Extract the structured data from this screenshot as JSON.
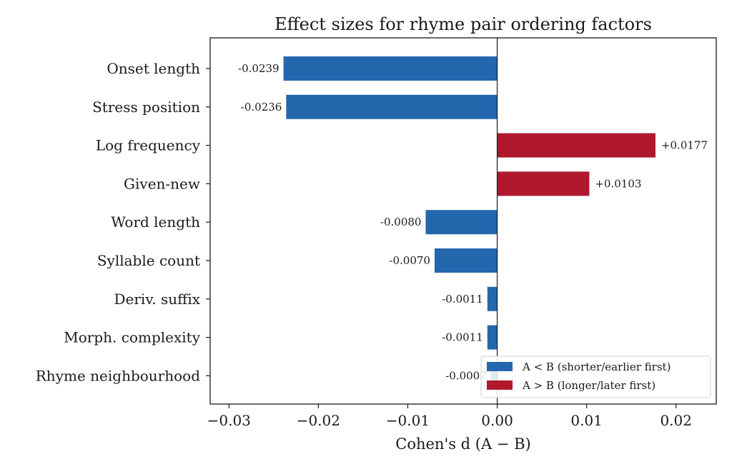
{
  "chart_data": {
    "type": "bar",
    "orientation": "horizontal",
    "title": "Effect sizes for rhyme pair ordering factors",
    "xlabel": "Cohen's d (A − B)",
    "ylabel": "",
    "xlim": [
      -0.0321,
      0.0245
    ],
    "xticks": [
      -0.03,
      -0.02,
      -0.01,
      0.0,
      0.01,
      0.02
    ],
    "xtick_labels": [
      "−0.03",
      "−0.02",
      "−0.01",
      "0.00",
      "0.01",
      "0.02"
    ],
    "grid": false,
    "categories": [
      "Onset length",
      "Stress position",
      "Log frequency",
      "Given-new",
      "Word length",
      "Syllable count",
      "Deriv. suffix",
      "Morph. complexity",
      "Rhyme neighbourhood"
    ],
    "values": [
      -0.0239,
      -0.0236,
      0.0177,
      0.0103,
      -0.008,
      -0.007,
      -0.0011,
      -0.0011,
      -0.0007
    ],
    "data_labels": [
      "-0.0239",
      "-0.0236",
      "+0.0177",
      "+0.0103",
      "-0.0080",
      "-0.0070",
      "-0.0011",
      "-0.0011",
      "-0.0007"
    ],
    "colors": {
      "negative": "#2467ad",
      "positive": "#b0182d"
    },
    "legend": {
      "placement": "lower-right",
      "entries": [
        {
          "label": "A < B (shorter/earlier first)",
          "color": "#2467ad"
        },
        {
          "label": "A > B (longer/later first)",
          "color": "#b0182d"
        }
      ]
    }
  }
}
